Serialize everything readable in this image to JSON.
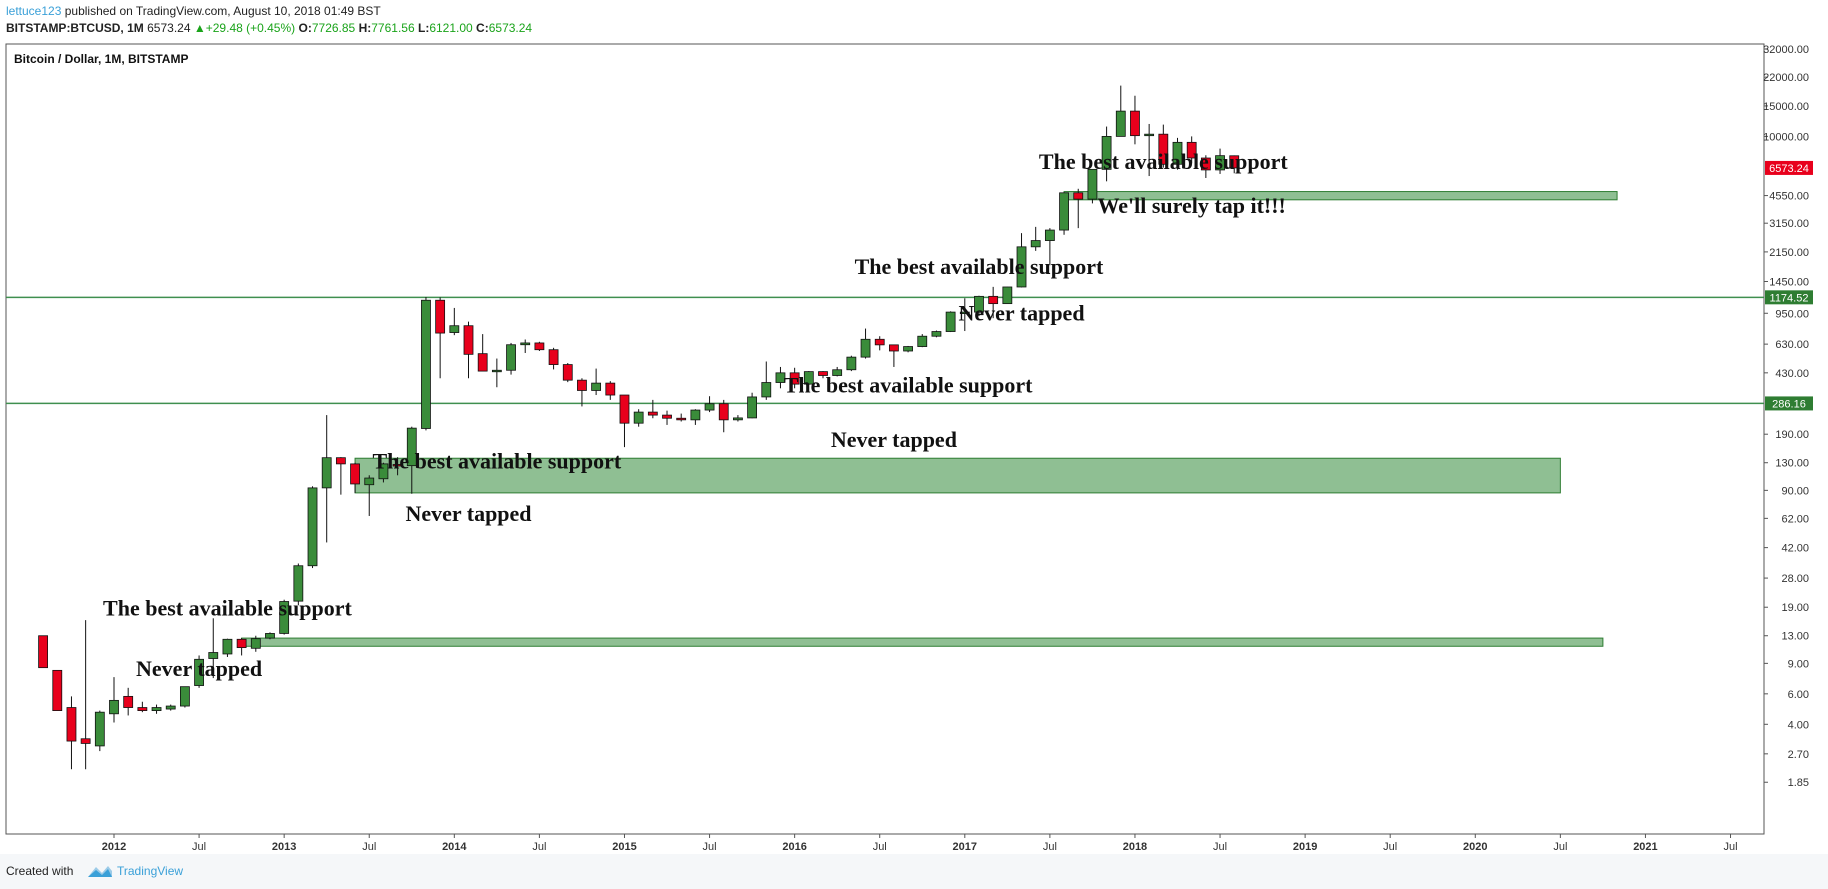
{
  "header": {
    "user": "lettuce123",
    "published": "published on TradingView.com, August 10, 2018 01:49 BST",
    "symbol": "BITSTAMP:BTCUSD, 1M",
    "price": "6573.24",
    "change_arrow": "▲",
    "change": "+29.48 (+0.45%)",
    "o_label": "O:",
    "o_val": "7726.85",
    "h_label": "H:",
    "h_val": "7761.56",
    "l_label": "L:",
    "l_val": "6121.00",
    "c_label": "C:",
    "c_val": "6573.24"
  },
  "footer": {
    "created": "Created with",
    "brand": "TradingView"
  },
  "colors": {
    "up": "#3a8c3a",
    "down": "#e8001c",
    "zone": "#8fbf93",
    "zone_border": "#2e7d32",
    "line": "#3f8f4f",
    "last_price": "#e8001c",
    "level": "#2e7d32"
  },
  "chart_data": {
    "type": "candlestick",
    "title": "Bitcoin / Dollar, 1M, BITSTAMP",
    "y_scale": "log",
    "ylim": [
      1.5,
      32000
    ],
    "y_ticks": [
      "1.85",
      "2.70",
      "4.00",
      "6.00",
      "9.00",
      "13.00",
      "19.00",
      "28.00",
      "42.00",
      "62.00",
      "90.00",
      "130.00",
      "190.00",
      "286.16",
      "430.00",
      "630.00",
      "950.00",
      "1174.52",
      "1450.00",
      "2150.00",
      "3150.00",
      "4550.00",
      "6573.24",
      "10000.00",
      "15000.00",
      "22000.00",
      "32000.00"
    ],
    "x_ticks": [
      "2012",
      "Jul",
      "2013",
      "Jul",
      "2014",
      "Jul",
      "2015",
      "Jul",
      "2016",
      "Jul",
      "2017",
      "Jul",
      "2018",
      "Jul",
      "2019",
      "Jul",
      "2020",
      "Jul",
      "2021",
      "Jul"
    ],
    "xlim": [
      "2011-05",
      "2021-11"
    ],
    "last_price": "6573.24",
    "levels": [
      {
        "label": "1174.52",
        "value": 1174.52
      },
      {
        "label": "286.16",
        "value": 286.16
      }
    ],
    "zones": [
      {
        "from": "2017-08",
        "to": "2020-11",
        "low": 4300,
        "high": 4800
      },
      {
        "from": "2013-06",
        "to": "2020-07",
        "low": 87,
        "high": 138
      },
      {
        "from": "2012-10",
        "to": "2020-10",
        "low": 11.3,
        "high": 12.6
      }
    ],
    "annotations": [
      {
        "text": "The best available support",
        "date": "2018-03",
        "price": 6500
      },
      {
        "text": "We'll surely tap it!!!",
        "date": "2018-05",
        "price": 3600
      },
      {
        "text": "The best available support",
        "date": "2017-02",
        "price": 1600
      },
      {
        "text": "Never tapped",
        "date": "2017-05",
        "price": 860
      },
      {
        "text": "The best available support",
        "date": "2016-09",
        "price": 330
      },
      {
        "text": "Never tapped",
        "date": "2016-08",
        "price": 160
      },
      {
        "text": "The best available support",
        "date": "2014-04",
        "price": 120
      },
      {
        "text": "Never tapped",
        "date": "2014-02",
        "price": 60
      },
      {
        "text": "The best available support",
        "date": "2012-09",
        "price": 17
      },
      {
        "text": "Never tapped",
        "date": "2012-07",
        "price": 7.6
      }
    ],
    "candles": [
      {
        "d": "2011-08",
        "o": 13,
        "h": 13,
        "l": 8.5,
        "c": 8.5
      },
      {
        "d": "2011-09",
        "o": 8.2,
        "h": 8.2,
        "l": 4.8,
        "c": 4.8
      },
      {
        "d": "2011-10",
        "o": 5.0,
        "h": 5.8,
        "l": 2.2,
        "c": 3.2
      },
      {
        "d": "2011-11",
        "o": 3.3,
        "h": 16,
        "l": 2.2,
        "c": 3.1
      },
      {
        "d": "2011-12",
        "o": 3.0,
        "h": 4.8,
        "l": 2.8,
        "c": 4.7
      },
      {
        "d": "2012-01",
        "o": 4.6,
        "h": 7.5,
        "l": 4.1,
        "c": 5.5
      },
      {
        "d": "2012-02",
        "o": 5.8,
        "h": 6.5,
        "l": 4.5,
        "c": 5.0
      },
      {
        "d": "2012-03",
        "o": 5.0,
        "h": 5.4,
        "l": 4.7,
        "c": 4.8
      },
      {
        "d": "2012-04",
        "o": 4.8,
        "h": 5.2,
        "l": 4.6,
        "c": 5.0
      },
      {
        "d": "2012-05",
        "o": 4.9,
        "h": 5.2,
        "l": 4.8,
        "c": 5.1
      },
      {
        "d": "2012-06",
        "o": 5.1,
        "h": 6.6,
        "l": 5.0,
        "c": 6.6
      },
      {
        "d": "2012-07",
        "o": 6.7,
        "h": 10,
        "l": 6.5,
        "c": 9.5
      },
      {
        "d": "2012-08",
        "o": 9.6,
        "h": 16.4,
        "l": 7.4,
        "c": 10.4
      },
      {
        "d": "2012-09",
        "o": 10.2,
        "h": 12.5,
        "l": 9.8,
        "c": 12.4
      },
      {
        "d": "2012-10",
        "o": 12.4,
        "h": 12.6,
        "l": 10.0,
        "c": 11.1
      },
      {
        "d": "2012-11",
        "o": 11.0,
        "h": 13.0,
        "l": 10.5,
        "c": 12.5
      },
      {
        "d": "2012-12",
        "o": 12.6,
        "h": 13.6,
        "l": 12.4,
        "c": 13.4
      },
      {
        "d": "2013-01",
        "o": 13.4,
        "h": 21,
        "l": 13.2,
        "c": 20.5
      },
      {
        "d": "2013-02",
        "o": 20.6,
        "h": 34,
        "l": 19.5,
        "c": 33
      },
      {
        "d": "2013-03",
        "o": 33,
        "h": 95,
        "l": 32,
        "c": 93
      },
      {
        "d": "2013-04",
        "o": 93,
        "h": 245,
        "l": 45,
        "c": 139
      },
      {
        "d": "2013-05",
        "o": 139,
        "h": 140,
        "l": 85,
        "c": 128
      },
      {
        "d": "2013-06",
        "o": 128,
        "h": 130,
        "l": 87,
        "c": 98
      },
      {
        "d": "2013-07",
        "o": 97,
        "h": 110,
        "l": 64,
        "c": 106
      },
      {
        "d": "2013-08",
        "o": 105,
        "h": 130,
        "l": 100,
        "c": 128
      },
      {
        "d": "2013-09",
        "o": 127,
        "h": 140,
        "l": 110,
        "c": 125
      },
      {
        "d": "2013-10",
        "o": 125,
        "h": 210,
        "l": 86,
        "c": 206
      },
      {
        "d": "2013-11",
        "o": 205,
        "h": 1180,
        "l": 200,
        "c": 1130
      },
      {
        "d": "2013-12",
        "o": 1130,
        "h": 1174,
        "l": 400,
        "c": 730
      },
      {
        "d": "2014-01",
        "o": 735,
        "h": 1020,
        "l": 710,
        "c": 805
      },
      {
        "d": "2014-02",
        "o": 805,
        "h": 850,
        "l": 400,
        "c": 550
      },
      {
        "d": "2014-03",
        "o": 555,
        "h": 720,
        "l": 440,
        "c": 440
      },
      {
        "d": "2014-04",
        "o": 445,
        "h": 520,
        "l": 355,
        "c": 445
      },
      {
        "d": "2014-05",
        "o": 445,
        "h": 640,
        "l": 420,
        "c": 625
      },
      {
        "d": "2014-06",
        "o": 625,
        "h": 670,
        "l": 560,
        "c": 640
      },
      {
        "d": "2014-07",
        "o": 640,
        "h": 650,
        "l": 575,
        "c": 585
      },
      {
        "d": "2014-08",
        "o": 585,
        "h": 600,
        "l": 450,
        "c": 480
      },
      {
        "d": "2014-09",
        "o": 480,
        "h": 490,
        "l": 380,
        "c": 390
      },
      {
        "d": "2014-10",
        "o": 390,
        "h": 400,
        "l": 275,
        "c": 340
      },
      {
        "d": "2014-11",
        "o": 340,
        "h": 455,
        "l": 320,
        "c": 375
      },
      {
        "d": "2014-12",
        "o": 375,
        "h": 385,
        "l": 300,
        "c": 320
      },
      {
        "d": "2015-01",
        "o": 320,
        "h": 320,
        "l": 160,
        "c": 220
      },
      {
        "d": "2015-02",
        "o": 220,
        "h": 265,
        "l": 210,
        "c": 255
      },
      {
        "d": "2015-03",
        "o": 255,
        "h": 300,
        "l": 235,
        "c": 245
      },
      {
        "d": "2015-04",
        "o": 245,
        "h": 260,
        "l": 215,
        "c": 235
      },
      {
        "d": "2015-05",
        "o": 235,
        "h": 250,
        "l": 225,
        "c": 230
      },
      {
        "d": "2015-06",
        "o": 230,
        "h": 265,
        "l": 215,
        "c": 262
      },
      {
        "d": "2015-07",
        "o": 262,
        "h": 315,
        "l": 255,
        "c": 285
      },
      {
        "d": "2015-08",
        "o": 285,
        "h": 300,
        "l": 195,
        "c": 230
      },
      {
        "d": "2015-09",
        "o": 230,
        "h": 245,
        "l": 225,
        "c": 236
      },
      {
        "d": "2015-10",
        "o": 236,
        "h": 330,
        "l": 235,
        "c": 312
      },
      {
        "d": "2015-11",
        "o": 312,
        "h": 500,
        "l": 300,
        "c": 378
      },
      {
        "d": "2015-12",
        "o": 378,
        "h": 465,
        "l": 350,
        "c": 430
      },
      {
        "d": "2016-01",
        "o": 430,
        "h": 460,
        "l": 350,
        "c": 370
      },
      {
        "d": "2016-02",
        "o": 370,
        "h": 440,
        "l": 365,
        "c": 437
      },
      {
        "d": "2016-03",
        "o": 437,
        "h": 440,
        "l": 400,
        "c": 415
      },
      {
        "d": "2016-04",
        "o": 415,
        "h": 465,
        "l": 410,
        "c": 448
      },
      {
        "d": "2016-05",
        "o": 448,
        "h": 540,
        "l": 440,
        "c": 530
      },
      {
        "d": "2016-06",
        "o": 530,
        "h": 775,
        "l": 520,
        "c": 672
      },
      {
        "d": "2016-07",
        "o": 672,
        "h": 700,
        "l": 580,
        "c": 624
      },
      {
        "d": "2016-08",
        "o": 624,
        "h": 625,
        "l": 465,
        "c": 575
      },
      {
        "d": "2016-09",
        "o": 575,
        "h": 615,
        "l": 565,
        "c": 610
      },
      {
        "d": "2016-10",
        "o": 610,
        "h": 720,
        "l": 605,
        "c": 700
      },
      {
        "d": "2016-11",
        "o": 700,
        "h": 755,
        "l": 690,
        "c": 745
      },
      {
        "d": "2016-12",
        "o": 745,
        "h": 975,
        "l": 740,
        "c": 965
      },
      {
        "d": "2017-01",
        "o": 965,
        "h": 1160,
        "l": 750,
        "c": 965
      },
      {
        "d": "2017-02",
        "o": 965,
        "h": 1200,
        "l": 915,
        "c": 1190
      },
      {
        "d": "2017-03",
        "o": 1190,
        "h": 1350,
        "l": 890,
        "c": 1080
      },
      {
        "d": "2017-04",
        "o": 1080,
        "h": 1350,
        "l": 1075,
        "c": 1348
      },
      {
        "d": "2017-05",
        "o": 1348,
        "h": 2760,
        "l": 1340,
        "c": 2300
      },
      {
        "d": "2017-06",
        "o": 2300,
        "h": 3000,
        "l": 2180,
        "c": 2500
      },
      {
        "d": "2017-07",
        "o": 2500,
        "h": 2950,
        "l": 1800,
        "c": 2875
      },
      {
        "d": "2017-08",
        "o": 2875,
        "h": 4750,
        "l": 2700,
        "c": 4720
      },
      {
        "d": "2017-09",
        "o": 4720,
        "h": 4980,
        "l": 2950,
        "c": 4340
      },
      {
        "d": "2017-10",
        "o": 4340,
        "h": 6470,
        "l": 4100,
        "c": 6450
      },
      {
        "d": "2017-11",
        "o": 6450,
        "h": 11400,
        "l": 5500,
        "c": 10000
      },
      {
        "d": "2017-12",
        "o": 10000,
        "h": 19660,
        "l": 10000,
        "c": 14000
      },
      {
        "d": "2018-01",
        "o": 14000,
        "h": 17180,
        "l": 9000,
        "c": 10100
      },
      {
        "d": "2018-02",
        "o": 10100,
        "h": 11800,
        "l": 5900,
        "c": 10300
      },
      {
        "d": "2018-03",
        "o": 10300,
        "h": 11700,
        "l": 6600,
        "c": 6900
      },
      {
        "d": "2018-04",
        "o": 6900,
        "h": 9800,
        "l": 6430,
        "c": 9240
      },
      {
        "d": "2018-05",
        "o": 9240,
        "h": 10000,
        "l": 7010,
        "c": 7500
      },
      {
        "d": "2018-06",
        "o": 7500,
        "h": 7780,
        "l": 5750,
        "c": 6400
      },
      {
        "d": "2018-07",
        "o": 6400,
        "h": 8500,
        "l": 6070,
        "c": 7740
      },
      {
        "d": "2018-08",
        "o": 7726.85,
        "h": 7761.56,
        "l": 6121,
        "c": 6573.24
      }
    ]
  }
}
